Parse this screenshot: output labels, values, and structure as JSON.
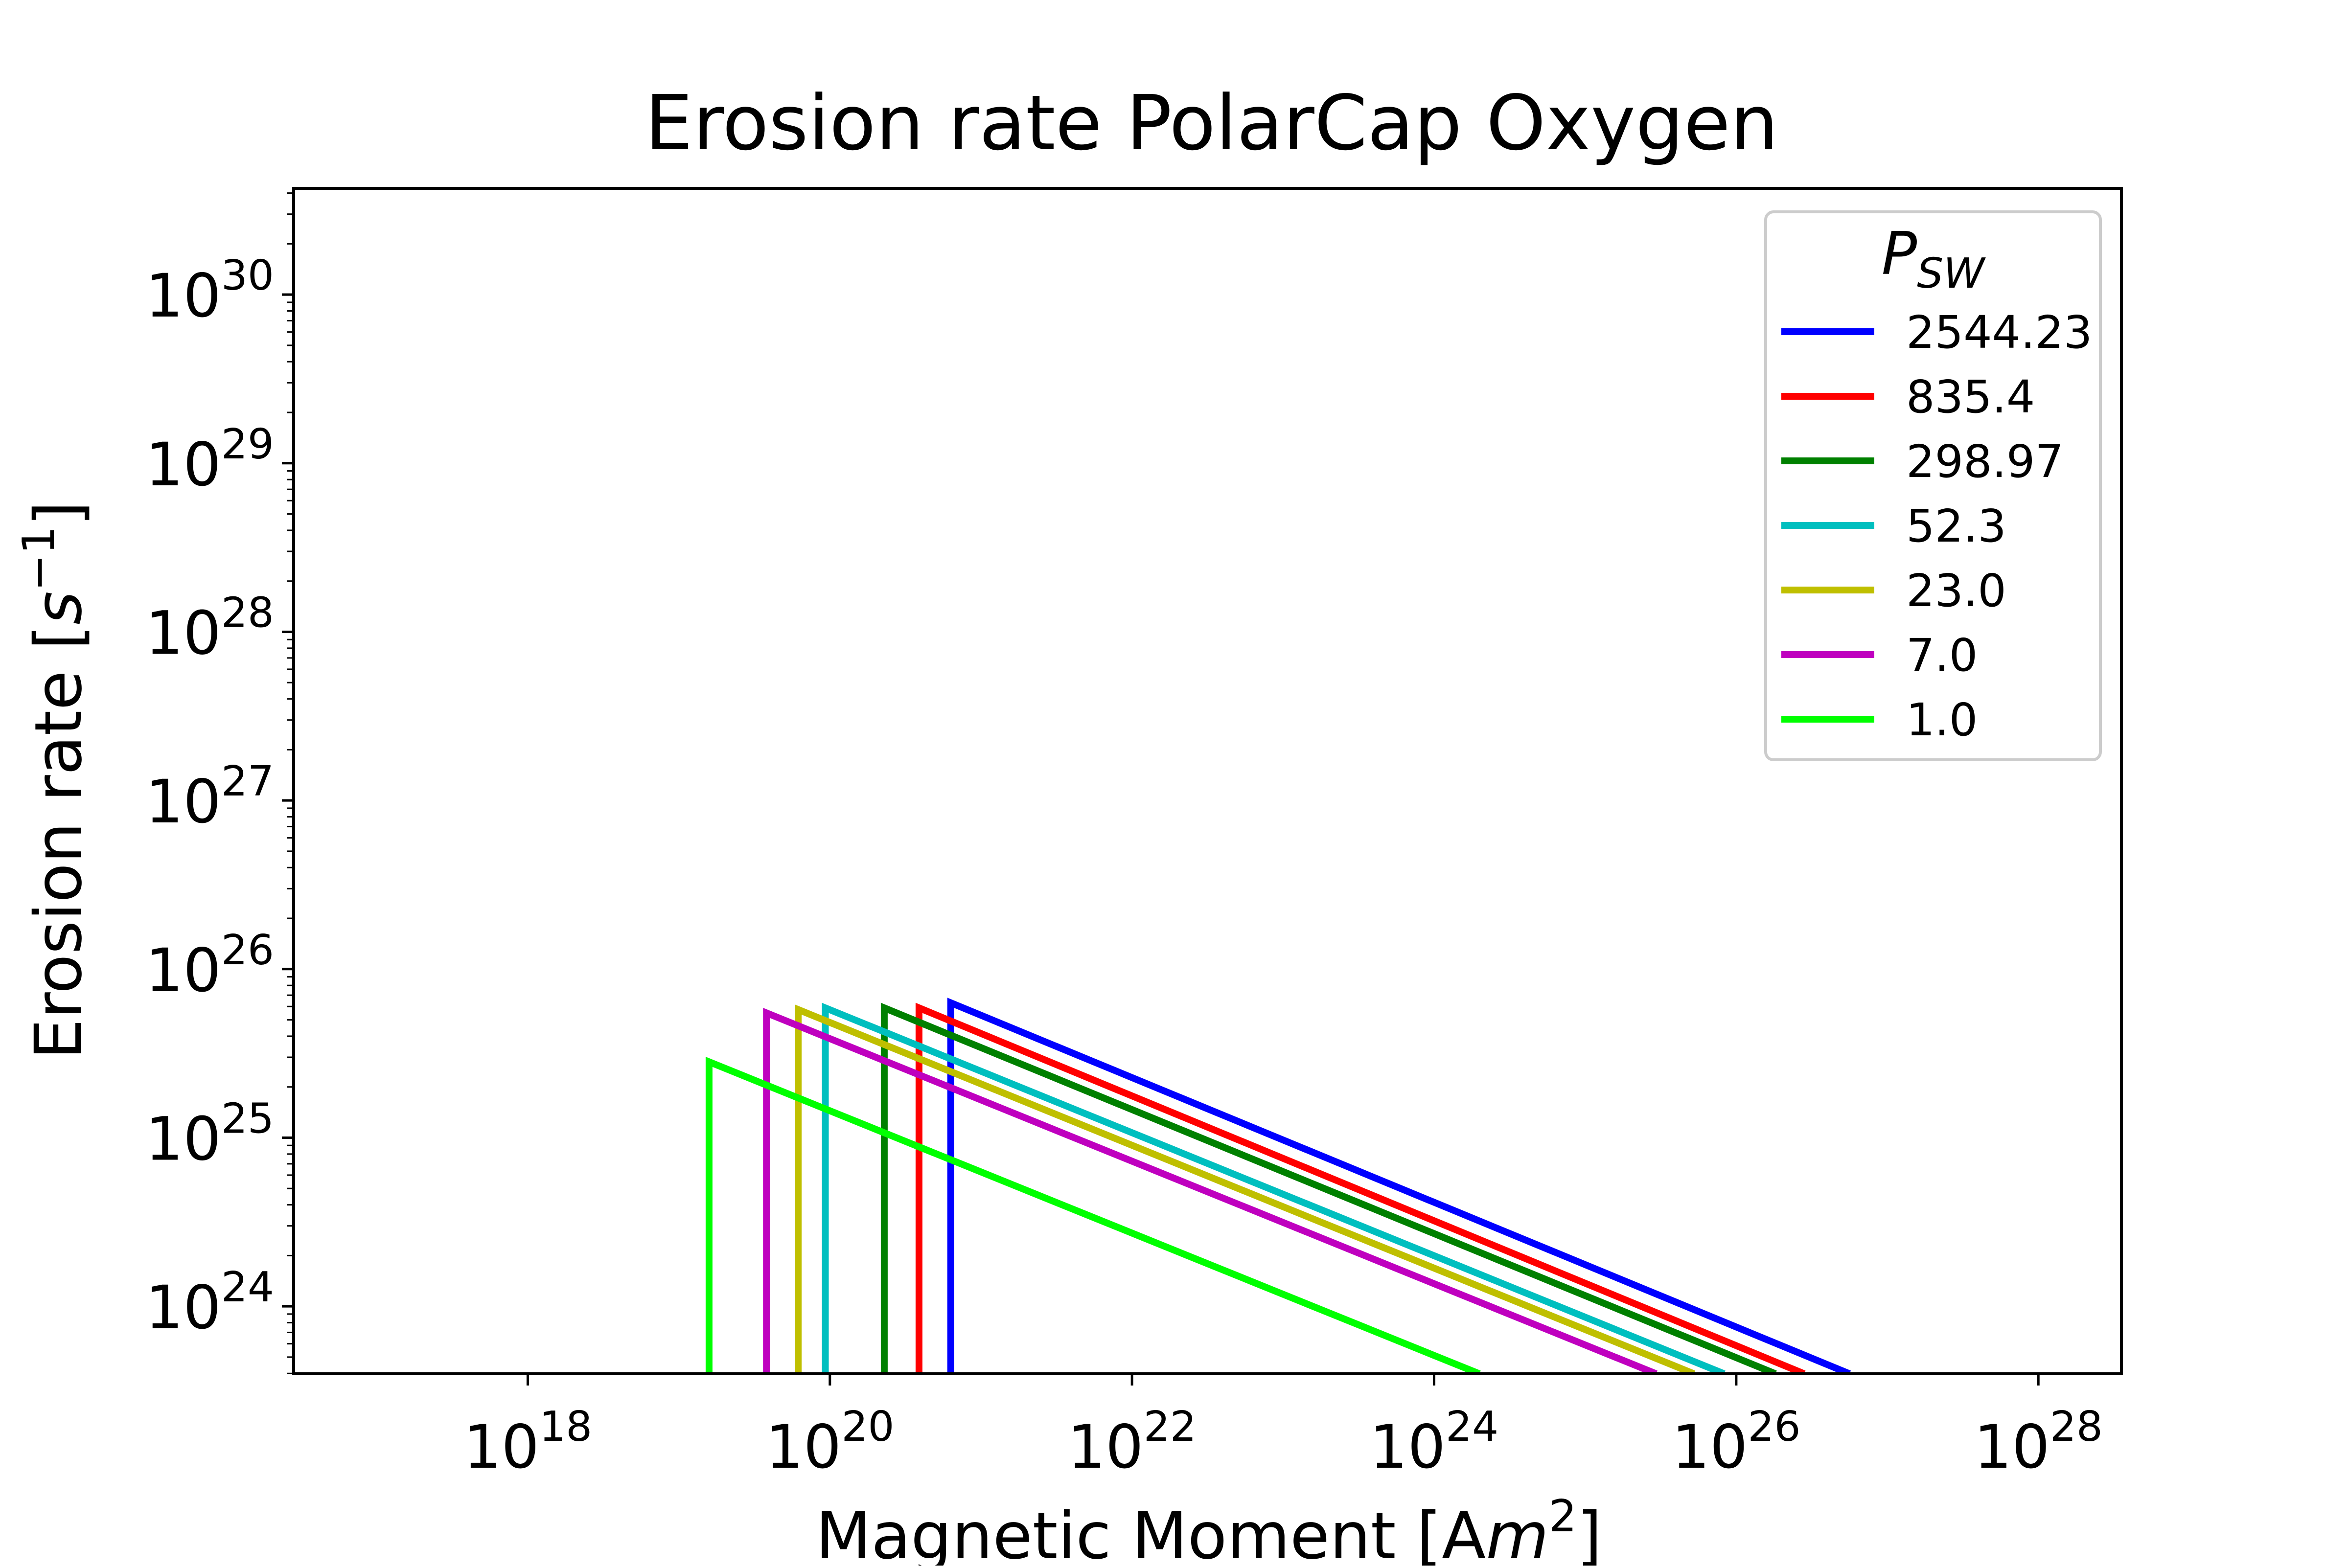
{
  "chart_data": {
    "type": "line",
    "title": "Erosion rate PolarCap Oxygen",
    "xlabel": {
      "prefix": "Magnetic Moment [A",
      "italic": "m",
      "sup": "2",
      "suffix": "]"
    },
    "ylabel": {
      "prefix": "Erosion rate [",
      "italic": "s",
      "sup": "−1",
      "suffix": "]"
    },
    "xscale": "log",
    "yscale": "log",
    "xlim_exp": [
      16.45,
      28.55
    ],
    "ylim_exp": [
      23.6,
      30.63
    ],
    "x_ticks": [
      {
        "base": "10",
        "exp": "18"
      },
      {
        "base": "10",
        "exp": "20"
      },
      {
        "base": "10",
        "exp": "22"
      },
      {
        "base": "10",
        "exp": "24"
      },
      {
        "base": "10",
        "exp": "26"
      },
      {
        "base": "10",
        "exp": "28"
      }
    ],
    "y_ticks": [
      {
        "base": "10",
        "exp": "24"
      },
      {
        "base": "10",
        "exp": "25"
      },
      {
        "base": "10",
        "exp": "26"
      },
      {
        "base": "10",
        "exp": "27"
      },
      {
        "base": "10",
        "exp": "28"
      },
      {
        "base": "10",
        "exp": "29"
      },
      {
        "base": "10",
        "exp": "30"
      }
    ],
    "grid": false,
    "legend": {
      "placement": "upper right",
      "title_base": "P",
      "title_sub": "SW"
    },
    "series": [
      {
        "name": "2544.23",
        "color": "#0000ff",
        "x_exp": [
          20.8,
          20.8,
          26.75
        ],
        "y_exp": [
          23.6,
          25.8,
          23.6
        ]
      },
      {
        "name": "835.4",
        "color": "#ff0000",
        "x_exp": [
          20.59,
          20.59,
          26.45
        ],
        "y_exp": [
          23.6,
          25.77,
          23.6
        ]
      },
      {
        "name": "298.97",
        "color": "#008000",
        "x_exp": [
          20.36,
          20.36,
          26.26
        ],
        "y_exp": [
          23.6,
          25.77,
          23.6
        ]
      },
      {
        "name": "52.3",
        "color": "#00bfbf",
        "x_exp": [
          19.97,
          19.97,
          25.92
        ],
        "y_exp": [
          23.6,
          25.77,
          23.6
        ]
      },
      {
        "name": "23.0",
        "color": "#bfbf00",
        "x_exp": [
          19.79,
          19.79,
          25.72
        ],
        "y_exp": [
          23.6,
          25.76,
          23.6
        ]
      },
      {
        "name": "7.0",
        "color": "#bf00bf",
        "x_exp": [
          19.58,
          19.58,
          25.47
        ],
        "y_exp": [
          23.6,
          25.74,
          23.6
        ]
      },
      {
        "name": "1.0",
        "color": "#00ff00",
        "x_exp": [
          19.2,
          19.2,
          24.3
        ],
        "y_exp": [
          23.6,
          25.45,
          23.6
        ]
      }
    ]
  }
}
